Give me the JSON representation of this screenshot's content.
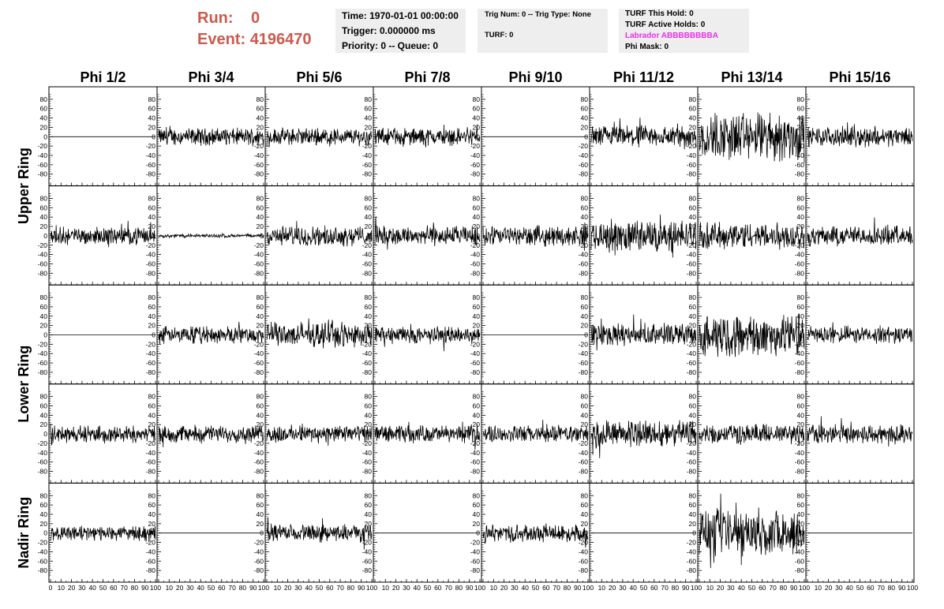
{
  "header": {
    "run_label": "Run:",
    "run_value": "0",
    "event_label": "Event:",
    "event_value": "4196470"
  },
  "info_time": {
    "time": "Time: 1970-01-01 00:00:00",
    "trigger": "Trigger: 0.000000 ms",
    "priority": "Priority: 0 -- Queue: 0"
  },
  "info_trig": {
    "trig": "Trig Num: 0 -- Trig Type: None",
    "turf": "TURF: 0"
  },
  "info_turf": {
    "this_hold": "TURF This Hold: 0",
    "active_holds": "TURF Active Holds: 0",
    "labrador": "Labrador ABBBBBBBBA",
    "phi_mask": "Phi Mask: 0"
  },
  "colors": {
    "run_text": "#cc5a4e",
    "labrador_text": "#e830e8",
    "info_background": "#eeeeee",
    "trace": "#000000"
  },
  "chart_data": {
    "type": "line",
    "columns": [
      "Phi 1/2",
      "Phi 3/4",
      "Phi 5/6",
      "Phi 7/8",
      "Phi 9/10",
      "Phi 11/12",
      "Phi 13/14",
      "Phi 15/16"
    ],
    "rows": [
      "Upper Ring",
      "Upper Ring",
      "Lower Ring",
      "Lower Ring",
      "Nadir Ring"
    ],
    "row_titles": [
      "Upper Ring",
      "Lower Ring",
      "Nadir Ring"
    ],
    "xlim": [
      0,
      100
    ],
    "ylim": [
      -100,
      100
    ],
    "y_ticks": [
      -80,
      -60,
      -40,
      -20,
      0,
      20,
      40,
      60,
      80
    ],
    "x_ticks": [
      0,
      10,
      20,
      30,
      40,
      50,
      60,
      70,
      80,
      90,
      100
    ],
    "amplitudes": [
      [
        0,
        14,
        14,
        14,
        0,
        18,
        40,
        16
      ],
      [
        14,
        3,
        16,
        16,
        16,
        26,
        22,
        16
      ],
      [
        0,
        14,
        20,
        14,
        0,
        18,
        34,
        14
      ],
      [
        14,
        14,
        14,
        14,
        14,
        22,
        16,
        16
      ],
      [
        12,
        0,
        14,
        0,
        14,
        0,
        38,
        0
      ]
    ]
  }
}
